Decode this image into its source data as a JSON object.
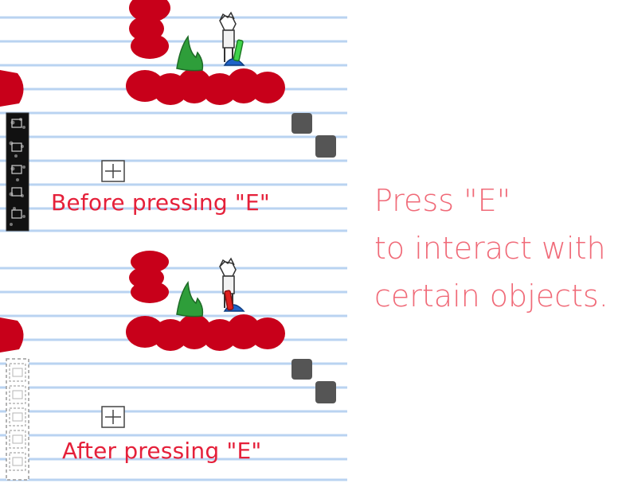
{
  "panels": [
    {
      "caption": "Before pressing \"E\"",
      "blocks_state": "solid"
    },
    {
      "caption": "After pressing \"E\"",
      "blocks_state": "ghost"
    }
  ],
  "hint": {
    "line1": "Press \"E\"",
    "line2": "to interact with",
    "line3": "certain objects."
  },
  "colors": {
    "paper_line": "#b9d3f1",
    "ink_red": "#c8001a",
    "caption_red": "#e5203a",
    "hint_red": "#f06a78",
    "plant_green": "#2e9e3a",
    "stone_grey": "#555555",
    "lever_green": "#3fd44a",
    "lever_red": "#e02020",
    "base_blue": "#1f63c8"
  },
  "icons": [
    "plus-marker-icon",
    "character-sprite-icon",
    "lever-icon",
    "plant-icon",
    "stone-icon",
    "switch-block-icon"
  ]
}
